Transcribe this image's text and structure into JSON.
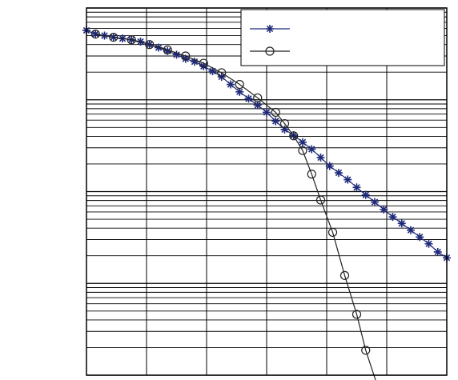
{
  "chart_data": {
    "type": "line",
    "title": "",
    "xlabel": "",
    "ylabel": "",
    "x_scale": "linear",
    "y_scale": "log",
    "xlim": [
      0,
      6
    ],
    "ylim": [
      0.0001,
      1
    ],
    "grid": true,
    "legend_position": "top-right",
    "series": [
      {
        "marker": "star",
        "color": "#1f2a7a",
        "x": [
          0.0,
          0.15,
          0.3,
          0.45,
          0.6,
          0.75,
          0.9,
          1.05,
          1.2,
          1.35,
          1.5,
          1.65,
          1.8,
          1.95,
          2.1,
          2.25,
          2.4,
          2.55,
          2.7,
          2.85,
          3.0,
          3.15,
          3.3,
          3.45,
          3.6,
          3.75,
          3.9,
          4.05,
          4.2,
          4.35,
          4.5,
          4.65,
          4.8,
          4.95,
          5.1,
          5.25,
          5.4,
          5.55,
          5.7,
          5.85,
          6.0
        ],
        "y": [
          0.57,
          0.52,
          0.5,
          0.48,
          0.465,
          0.45,
          0.43,
          0.4,
          0.37,
          0.34,
          0.31,
          0.28,
          0.26,
          0.232,
          0.205,
          0.178,
          0.147,
          0.122,
          0.103,
          0.0875,
          0.073,
          0.0585,
          0.0475,
          0.041,
          0.0345,
          0.029,
          0.0235,
          0.019,
          0.016,
          0.0135,
          0.0111,
          0.0092,
          0.0077,
          0.0064,
          0.0053,
          0.0045,
          0.0038,
          0.0032,
          0.0027,
          0.0022,
          0.0019
        ]
      },
      {
        "marker": "circle",
        "color": "#222222",
        "x": [
          0.15,
          0.45,
          0.75,
          1.05,
          1.35,
          1.65,
          1.95,
          2.25,
          2.55,
          2.85,
          3.15,
          3.3,
          3.45,
          3.6,
          3.75,
          3.9,
          4.1,
          4.3,
          4.5,
          4.65,
          4.85
        ],
        "y": [
          0.52,
          0.48,
          0.45,
          0.4,
          0.35,
          0.3,
          0.25,
          0.197,
          0.147,
          0.105,
          0.073,
          0.055,
          0.0405,
          0.028,
          0.0155,
          0.0081,
          0.0036,
          0.00122,
          0.00046,
          0.000187,
          7.5e-05
        ]
      }
    ]
  }
}
